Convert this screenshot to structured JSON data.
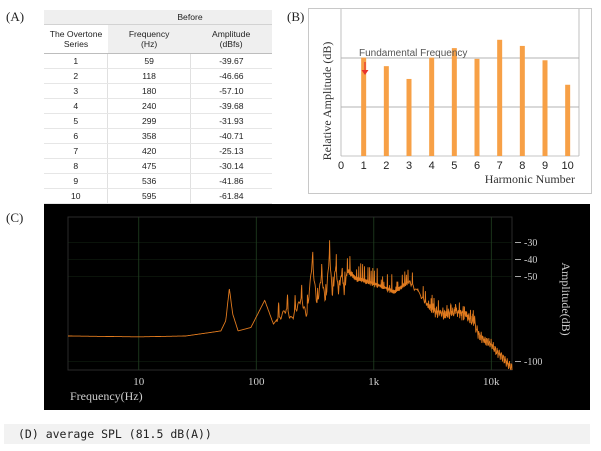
{
  "panel_a": {
    "label": "(A)",
    "group_header": "Before",
    "col1": [
      "The Overtone",
      "Series"
    ],
    "col2": [
      "Frequency",
      "(Hz)"
    ],
    "col3": [
      "Amplitude",
      "(dBfs)"
    ],
    "rows": [
      [
        "1",
        "59",
        "-39.67"
      ],
      [
        "2",
        "118",
        "-46.66"
      ],
      [
        "3",
        "180",
        "-57.10"
      ],
      [
        "4",
        "240",
        "-39.68"
      ],
      [
        "5",
        "299",
        "-31.93"
      ],
      [
        "6",
        "358",
        "-40.71"
      ],
      [
        "7",
        "420",
        "-25.13"
      ],
      [
        "8",
        "475",
        "-30.14"
      ],
      [
        "9",
        "536",
        "-41.86"
      ],
      [
        "10",
        "595",
        "-61.84"
      ]
    ]
  },
  "panel_b": {
    "label": "(B)",
    "annotation": "Fundamental Frequency",
    "colors": {
      "bar": "#f7a046",
      "arrow": "#e8322b",
      "grid": "#9a9a9a",
      "annotation_text": "#555555"
    }
  },
  "panel_c": {
    "label": "(C)",
    "colors": {
      "background": "#000000",
      "trace": "#e07a1e",
      "grid": "#214021",
      "text": "#cfcfcf"
    }
  },
  "panel_d": {
    "text": "(D) average SPL (81.5 dB(A))"
  },
  "chart_data": [
    {
      "type": "bar",
      "panel": "B",
      "title": "",
      "xlabel": "Harmonic Number",
      "ylabel": "Relative Amplitude (dB)",
      "x_ticks": [
        "0",
        "1",
        "2",
        "3",
        "4",
        "5",
        "6",
        "7",
        "8",
        "9",
        "10"
      ],
      "categories": [
        1,
        2,
        3,
        4,
        5,
        6,
        7,
        8,
        9,
        10
      ],
      "values": [
        -39.67,
        -46.66,
        -57.1,
        -39.68,
        -31.93,
        -40.71,
        -25.13,
        -30.14,
        -41.86,
        -61.84
      ],
      "xlim": [
        0,
        10.5
      ],
      "ylim": [
        -120,
        0
      ],
      "grid": true,
      "annotations": [
        {
          "text": "Fundamental Frequency",
          "target": 1
        }
      ]
    },
    {
      "type": "line",
      "panel": "C",
      "title": "",
      "xlabel": "Frequency(Hz)",
      "ylabel": "Amplitude(dB)",
      "x_scale": "log",
      "xlim": [
        2.5,
        15000
      ],
      "ylim": [
        -105,
        -15
      ],
      "x_ticks": [
        "10",
        "100",
        "1k",
        "10k"
      ],
      "y_ticks": [
        "-30",
        "-40",
        "-50",
        "-100"
      ],
      "grid": true,
      "series": [
        {
          "x": [
            2.5,
            10,
            25,
            40,
            50,
            55,
            59,
            63,
            70,
            90,
            118,
            140,
            180,
            200,
            240,
            270,
            299,
            330,
            358,
            390,
            420,
            445,
            475,
            500,
            536,
            560,
            595,
            700,
            900,
            1200,
            1500,
            2000,
            2500,
            3000,
            4000,
            5000,
            6000,
            7000,
            8000,
            9000,
            10000,
            11000,
            12000,
            13000,
            14000,
            15000
          ],
          "y": [
            -85,
            -85.5,
            -85,
            -83,
            -82,
            -76,
            -57,
            -72,
            -82,
            -80,
            -64,
            -78,
            -68,
            -74,
            -62,
            -72,
            -40,
            -66,
            -48,
            -64,
            -35,
            -60,
            -42,
            -58,
            -46,
            -58,
            -45,
            -50,
            -52,
            -55,
            -58,
            -52,
            -60,
            -68,
            -72,
            -70,
            -72,
            -76,
            -85,
            -88,
            -90,
            -94,
            -96,
            -99,
            -102,
            -104
          ]
        }
      ]
    }
  ]
}
